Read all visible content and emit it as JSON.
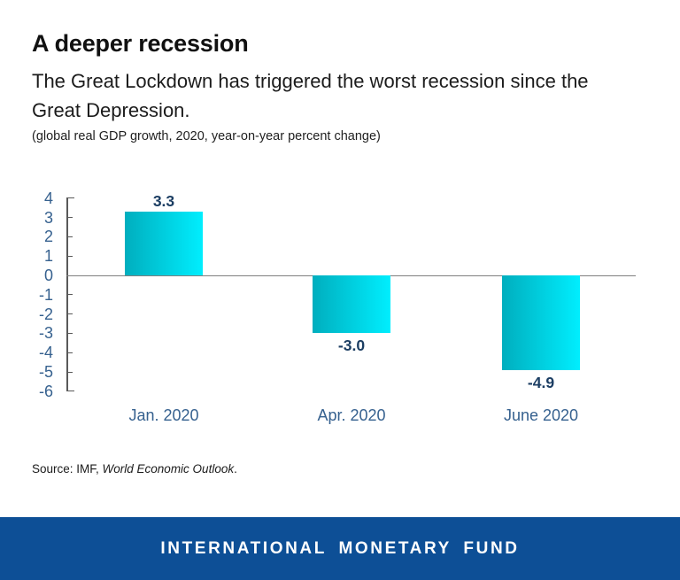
{
  "header": {
    "title": "A deeper recession",
    "subtitle": "The Great Lockdown has triggered the worst recession since the Great Depression.",
    "subtitle_lines": [
      "The Great Lockdown has triggered the worst recession since the",
      "Great Depression."
    ],
    "note": "(global real GDP growth, 2020, year-on-year percent change)"
  },
  "chart_data": {
    "type": "bar",
    "categories": [
      "Jan. 2020",
      "Apr. 2020",
      "June 2020"
    ],
    "values": [
      3.3,
      -3.0,
      -4.9
    ],
    "value_labels": [
      "3.3",
      "-3.0",
      "-4.9"
    ],
    "title": "A deeper recession",
    "subtitle": "The Great Lockdown has triggered the worst recession since the Great Depression.",
    "unit_note": "(global real GDP growth, 2020, year-on-year percent change)",
    "xlabel": "",
    "ylabel": "",
    "ylim": [
      -6,
      4
    ],
    "yticks": [
      4,
      3,
      2,
      1,
      0,
      -1,
      -2,
      -3,
      -4,
      -5,
      -6
    ],
    "grid": false,
    "legend": "none",
    "zero_baseline": true,
    "bar_gradient_left": "#00aebe",
    "bar_gradient_right": "#00eefe",
    "axis_color": "#595959",
    "zero_line_color": "#7f7f7f",
    "tick_label_color": "#36618f",
    "value_label_color": "#1c3e63"
  },
  "source": {
    "prefix": "Source: IMF, ",
    "publication": "World Economic Outlook",
    "suffix": "."
  },
  "footer": {
    "label": "INTERNATIONAL MONETARY FUND",
    "background": "#0d4f96",
    "text_color": "#ffffff"
  }
}
